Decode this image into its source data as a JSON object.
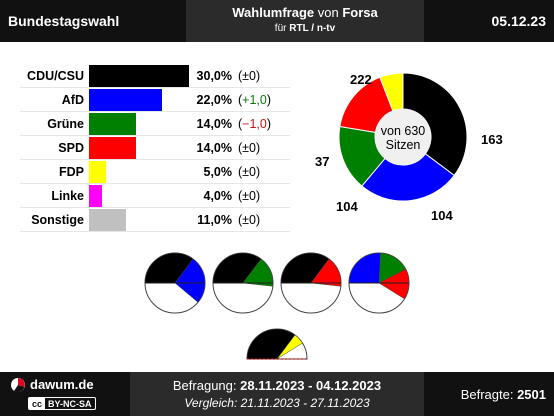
{
  "header": {
    "left_title": "Bundestagswahl",
    "center_title_prefix": "Wahlumfrage",
    "center_title_mid": "von",
    "center_title_institute": "Forsa",
    "center_subtitle_prefix": "für",
    "center_subtitle_media": "RTL / n-tv",
    "date": "05.12.23"
  },
  "chart_data": [
    {
      "type": "bar",
      "categories": [
        "CDU/CSU",
        "AfD",
        "Grüne",
        "SPD",
        "FDP",
        "Linke",
        "Sonstige"
      ],
      "values": [
        30.0,
        22.0,
        14.0,
        14.0,
        5.0,
        4.0,
        11.0
      ],
      "value_labels": [
        "30,0%",
        "22,0%",
        "14,0%",
        "14,0%",
        "5,0%",
        "4,0%",
        "11,0%"
      ],
      "changes": [
        {
          "text": "±0",
          "direction": "none"
        },
        {
          "text": "+1,0",
          "direction": "up"
        },
        {
          "text": "−1,0",
          "direction": "down"
        },
        {
          "text": "±0",
          "direction": "none"
        },
        {
          "text": "±0",
          "direction": "none"
        },
        {
          "text": "±0",
          "direction": "none"
        },
        {
          "text": "±0",
          "direction": "none"
        }
      ],
      "colors": [
        "#000000",
        "#0000ff",
        "#008000",
        "#ff0000",
        "#ffff00",
        "#ff00ff",
        "#c0c0c0"
      ],
      "xlim": [
        0,
        30
      ]
    },
    {
      "type": "pie",
      "center_label_line1": "von 630",
      "center_label_line2": "Sitzen",
      "categories": [
        "CDU/CSU",
        "AfD",
        "Grüne",
        "SPD",
        "FDP"
      ],
      "values": [
        222,
        163,
        104,
        104,
        37
      ],
      "value_labels": [
        "222",
        "163",
        "104",
        "104",
        "37"
      ],
      "colors": [
        "#000000",
        "#0000ff",
        "#008000",
        "#ff0000",
        "#ffff00"
      ]
    },
    {
      "type": "pie",
      "coalitions": [
        {
          "parties": [
            "CDU/CSU",
            "AfD"
          ],
          "seats": [
            222,
            163
          ],
          "colors": [
            "#000000",
            "#0000ff"
          ]
        },
        {
          "parties": [
            "CDU/CSU",
            "Grüne"
          ],
          "seats": [
            222,
            104
          ],
          "colors": [
            "#000000",
            "#008000"
          ]
        },
        {
          "parties": [
            "CDU/CSU",
            "SPD"
          ],
          "seats": [
            222,
            104
          ],
          "colors": [
            "#000000",
            "#ff0000"
          ]
        },
        {
          "parties": [
            "AfD",
            "Grüne",
            "SPD"
          ],
          "seats": [
            163,
            104,
            104
          ],
          "colors": [
            "#0000ff",
            "#008000",
            "#ff0000"
          ]
        },
        {
          "parties": [
            "CDU/CSU",
            "FDP"
          ],
          "seats": [
            222,
            37
          ],
          "colors": [
            "#000000",
            "#ffff00"
          ]
        }
      ],
      "total_seats": 630
    }
  ],
  "footer": {
    "brand": "dawum.de",
    "license_cc": "cc",
    "license_text": "BY-NC-SA",
    "survey_label": "Befragung:",
    "survey_range": "28.11.2023 - 04.12.2023",
    "compare_label": "Vergleich:",
    "compare_range": "21.11.2023 - 27.11.2023",
    "respondents_label": "Befragte:",
    "respondents_value": "2501"
  }
}
